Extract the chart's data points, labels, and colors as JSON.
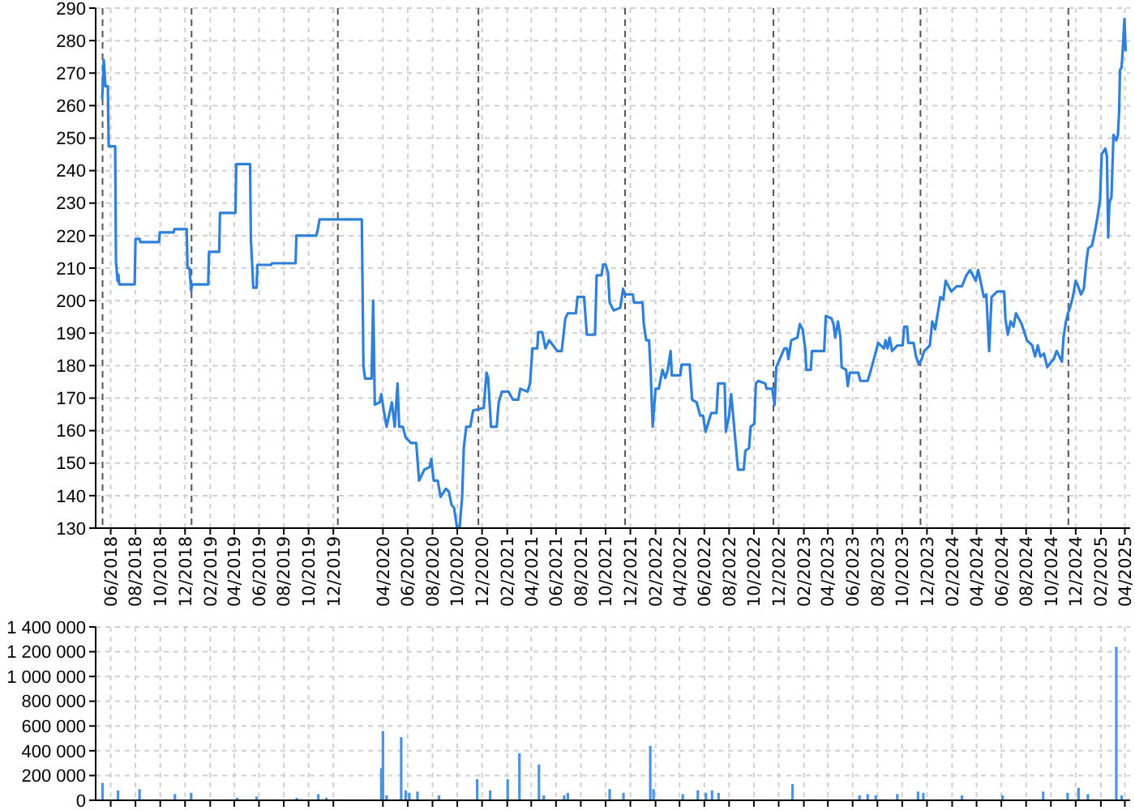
{
  "chart_data": [
    {
      "type": "line",
      "grid": true,
      "line_style": "solid",
      "xlim": [
        "2018-04-25",
        "2025-04-14"
      ],
      "ylim": [
        130,
        290
      ],
      "yticks": [
        130,
        140,
        150,
        160,
        170,
        180,
        190,
        200,
        210,
        220,
        230,
        240,
        250,
        260,
        270,
        280,
        290
      ],
      "xticks": [
        {
          "value": "2018-06-01",
          "label": "06/2018"
        },
        {
          "value": "2018-08-01",
          "label": "08/2018"
        },
        {
          "value": "2018-10-01",
          "label": "10/2018"
        },
        {
          "value": "2018-12-01",
          "label": "12/2018"
        },
        {
          "value": "2019-02-01",
          "label": "02/2019"
        },
        {
          "value": "2019-04-01",
          "label": "04/2019"
        },
        {
          "value": "2019-06-01",
          "label": "06/2019"
        },
        {
          "value": "2019-08-01",
          "label": "08/2019"
        },
        {
          "value": "2019-10-01",
          "label": "10/2019"
        },
        {
          "value": "2019-12-01",
          "label": "12/2019"
        },
        {
          "value": "2020-04-01",
          "label": "04/2020"
        },
        {
          "value": "2020-06-01",
          "label": "06/2020"
        },
        {
          "value": "2020-08-01",
          "label": "08/2020"
        },
        {
          "value": "2020-10-01",
          "label": "10/2020"
        },
        {
          "value": "2020-12-01",
          "label": "12/2020"
        },
        {
          "value": "2021-02-01",
          "label": "02/2021"
        },
        {
          "value": "2021-04-01",
          "label": "04/2021"
        },
        {
          "value": "2021-06-01",
          "label": "06/2021"
        },
        {
          "value": "2021-08-01",
          "label": "08/2021"
        },
        {
          "value": "2021-10-01",
          "label": "10/2021"
        },
        {
          "value": "2021-12-01",
          "label": "12/2021"
        },
        {
          "value": "2022-02-01",
          "label": "02/2022"
        },
        {
          "value": "2022-04-01",
          "label": "04/2022"
        },
        {
          "value": "2022-06-01",
          "label": "06/2022"
        },
        {
          "value": "2022-08-01",
          "label": "08/2022"
        },
        {
          "value": "2022-10-01",
          "label": "10/2022"
        },
        {
          "value": "2022-12-01",
          "label": "12/2022"
        },
        {
          "value": "2023-02-01",
          "label": "02/2023"
        },
        {
          "value": "2023-04-01",
          "label": "04/2023"
        },
        {
          "value": "2023-06-01",
          "label": "06/2023"
        },
        {
          "value": "2023-08-01",
          "label": "08/2023"
        },
        {
          "value": "2023-10-01",
          "label": "10/2023"
        },
        {
          "value": "2023-12-01",
          "label": "12/2023"
        },
        {
          "value": "2024-02-01",
          "label": "02/2024"
        },
        {
          "value": "2024-04-01",
          "label": "04/2024"
        },
        {
          "value": "2024-06-01",
          "label": "06/2024"
        },
        {
          "value": "2024-08-01",
          "label": "08/2024"
        },
        {
          "value": "2024-10-01",
          "label": "10/2024"
        },
        {
          "value": "2024-12-01",
          "label": "12/2024"
        },
        {
          "value": "2025-02-01",
          "label": "02/2025"
        },
        {
          "value": "2025-04-01",
          "label": "04/2025"
        }
      ],
      "ref_lines": [
        {
          "axis": "x",
          "value": "2018-05-12",
          "color": "#555555",
          "line_style": "dashed"
        },
        {
          "axis": "x",
          "value": "2018-12-17",
          "color": "#555555",
          "line_style": "dashed"
        },
        {
          "axis": "x",
          "value": "2019-12-12",
          "color": "#555555",
          "line_style": "dashed"
        },
        {
          "axis": "x",
          "value": "2020-11-22",
          "color": "#555555",
          "line_style": "dashed"
        },
        {
          "axis": "x",
          "value": "2021-11-18",
          "color": "#555555",
          "line_style": "dashed"
        },
        {
          "axis": "x",
          "value": "2022-11-18",
          "color": "#555555",
          "line_style": "dashed"
        },
        {
          "axis": "x",
          "value": "2023-11-15",
          "color": "#555555",
          "line_style": "dashed"
        },
        {
          "axis": "x",
          "value": "2024-11-13",
          "color": "#555555",
          "line_style": "dashed"
        }
      ],
      "series": [
        {
          "color": "#2f80d8",
          "x": [
            "2018-05-11",
            "2018-05-15",
            "2018-05-19",
            "2018-05-25",
            "2018-05-27",
            "2018-06-12",
            "2018-06-14",
            "2018-06-18",
            "2018-06-20",
            "2018-06-22",
            "2018-07-30",
            "2018-08-01",
            "2018-08-11",
            "2018-08-13",
            "2018-09-28",
            "2018-09-30",
            "2018-11-03",
            "2018-11-05",
            "2018-12-05",
            "2018-12-07",
            "2018-12-12",
            "2018-12-16",
            "2018-12-18",
            "2019-01-27",
            "2019-01-29",
            "2019-02-23",
            "2019-02-25",
            "2019-04-04",
            "2019-04-06",
            "2019-05-10",
            "2019-05-12",
            "2019-05-18",
            "2019-05-26",
            "2019-05-28",
            "2019-07-01",
            "2019-07-03",
            "2019-08-30",
            "2019-09-01",
            "2019-10-20",
            "2019-10-24",
            "2019-10-28",
            "2019-11-09",
            "2020-02-09",
            "2020-02-13",
            "2020-02-17",
            "2020-03-04",
            "2020-03-08",
            "2020-03-12",
            "2020-03-24",
            "2020-03-28",
            "2020-04-03",
            "2020-04-10",
            "2020-04-23",
            "2020-04-30",
            "2020-05-07",
            "2020-05-11",
            "2020-05-20",
            "2020-05-27",
            "2020-06-09",
            "2020-06-22",
            "2020-06-29",
            "2020-07-12",
            "2020-07-25",
            "2020-07-29",
            "2020-08-04",
            "2020-08-14",
            "2020-08-21",
            "2020-09-03",
            "2020-09-10",
            "2020-09-17",
            "2020-09-23",
            "2020-09-30",
            "2020-10-07",
            "2020-10-13",
            "2020-10-17",
            "2020-10-23",
            "2020-11-02",
            "2020-11-09",
            "2020-12-05",
            "2020-12-12",
            "2020-12-16",
            "2020-12-23",
            "2021-01-06",
            "2021-01-11",
            "2021-01-19",
            "2021-02-04",
            "2021-02-15",
            "2021-02-28",
            "2021-03-05",
            "2021-03-23",
            "2021-03-29",
            "2021-04-04",
            "2021-04-16",
            "2021-04-18",
            "2021-04-28",
            "2021-05-06",
            "2021-05-15",
            "2021-06-04",
            "2021-06-15",
            "2021-06-24",
            "2021-06-30",
            "2021-07-20",
            "2021-07-24",
            "2021-08-09",
            "2021-08-16",
            "2021-09-05",
            "2021-09-09",
            "2021-09-21",
            "2021-09-25",
            "2021-10-01",
            "2021-10-07",
            "2021-10-11",
            "2021-10-21",
            "2021-11-06",
            "2021-11-13",
            "2021-11-17",
            "2021-12-07",
            "2021-12-10",
            "2021-12-31",
            "2022-01-03",
            "2022-01-09",
            "2022-01-16",
            "2022-01-20",
            "2022-01-25",
            "2022-01-29",
            "2022-02-01",
            "2022-02-09",
            "2022-02-18",
            "2022-02-25",
            "2022-03-03",
            "2022-03-10",
            "2022-03-13",
            "2022-04-03",
            "2022-04-06",
            "2022-04-26",
            "2022-05-02",
            "2022-05-13",
            "2022-05-22",
            "2022-05-29",
            "2022-06-04",
            "2022-06-18",
            "2022-07-01",
            "2022-07-05",
            "2022-07-21",
            "2022-07-24",
            "2022-08-01",
            "2022-08-06",
            "2022-08-11",
            "2022-08-17",
            "2022-08-23",
            "2022-09-06",
            "2022-09-10",
            "2022-09-19",
            "2022-09-23",
            "2022-10-02",
            "2022-10-06",
            "2022-10-12",
            "2022-10-29",
            "2022-11-01",
            "2022-11-15",
            "2022-11-21",
            "2022-11-25",
            "2022-12-01",
            "2022-12-15",
            "2022-12-21",
            "2022-12-25",
            "2023-01-01",
            "2023-01-16",
            "2023-01-22",
            "2023-01-29",
            "2023-02-05",
            "2023-02-07",
            "2023-02-18",
            "2023-02-21",
            "2023-03-23",
            "2023-03-27",
            "2023-04-10",
            "2023-04-15",
            "2023-04-19",
            "2023-04-26",
            "2023-05-02",
            "2023-05-05",
            "2023-05-16",
            "2023-05-20",
            "2023-05-25",
            "2023-06-15",
            "2023-06-20",
            "2023-07-08",
            "2023-07-14",
            "2023-07-25",
            "2023-08-03",
            "2023-08-17",
            "2023-08-21",
            "2023-08-26",
            "2023-08-31",
            "2023-09-06",
            "2023-09-19",
            "2023-10-02",
            "2023-10-06",
            "2023-10-13",
            "2023-10-16",
            "2023-10-29",
            "2023-11-04",
            "2023-11-11",
            "2023-11-18",
            "2023-11-24",
            "2023-12-08",
            "2023-12-14",
            "2023-12-21",
            "2024-01-03",
            "2024-01-10",
            "2024-01-16",
            "2024-01-30",
            "2024-02-12",
            "2024-02-25",
            "2024-03-07",
            "2024-03-16",
            "2024-03-23",
            "2024-03-30",
            "2024-04-05",
            "2024-04-12",
            "2024-04-19",
            "2024-04-25",
            "2024-05-02",
            "2024-05-08",
            "2024-05-22",
            "2024-06-08",
            "2024-06-11",
            "2024-06-17",
            "2024-06-24",
            "2024-07-01",
            "2024-07-07",
            "2024-07-21",
            "2024-08-03",
            "2024-08-16",
            "2024-08-23",
            "2024-08-30",
            "2024-09-05",
            "2024-09-14",
            "2024-09-22",
            "2024-10-02",
            "2024-10-08",
            "2024-10-15",
            "2024-10-22",
            "2024-10-28",
            "2024-11-01",
            "2024-11-07",
            "2024-11-12",
            "2024-11-17",
            "2024-11-24",
            "2024-12-01",
            "2024-12-07",
            "2024-12-14",
            "2024-12-21",
            "2024-12-28",
            "2025-01-01",
            "2025-01-10",
            "2025-01-17",
            "2025-01-23",
            "2025-01-30",
            "2025-02-03",
            "2025-02-12",
            "2025-02-16",
            "2025-02-19",
            "2025-02-22",
            "2025-02-27",
            "2025-03-04",
            "2025-03-11",
            "2025-03-15",
            "2025-03-18",
            "2025-03-20",
            "2025-03-24",
            "2025-03-27",
            "2025-03-31",
            "2025-04-03"
          ],
          "values": [
            262,
            274,
            266,
            266,
            247.5,
            247.5,
            212,
            206,
            208,
            205,
            205,
            219,
            219,
            218,
            218,
            221,
            221,
            222,
            222,
            210,
            210,
            203,
            205,
            205,
            215,
            215,
            227,
            227,
            242,
            242,
            219,
            204,
            204,
            211,
            211,
            211.5,
            211.5,
            220,
            220,
            222,
            225,
            225,
            225,
            180,
            176,
            176,
            200,
            168,
            168.7,
            171.2,
            166.2,
            161.2,
            168.7,
            161.2,
            174.5,
            161.2,
            161.2,
            157.9,
            156.2,
            156.2,
            144.6,
            148,
            148.8,
            151.3,
            144.6,
            144.6,
            139.6,
            142.1,
            141.3,
            137.1,
            136.3,
            130.5,
            130.5,
            139.6,
            154.6,
            161.2,
            161.2,
            166.2,
            167,
            177.8,
            176.2,
            161.2,
            161.2,
            168.7,
            172,
            172,
            169.5,
            169.5,
            172.9,
            172,
            174.5,
            185.3,
            185.3,
            190.3,
            190.3,
            185.3,
            187.8,
            184.5,
            184.5,
            194.5,
            196.1,
            196.1,
            201.1,
            201.1,
            189.5,
            189.5,
            207.8,
            207.8,
            211.1,
            211.1,
            208.6,
            199.4,
            197,
            197.8,
            203.6,
            201.9,
            201.9,
            199.4,
            199.4,
            192.8,
            187.8,
            187.8,
            177.8,
            161.2,
            167.9,
            172.9,
            172.9,
            178.7,
            176.2,
            178.7,
            184.5,
            177,
            177,
            180.3,
            180.3,
            169.5,
            168.7,
            164.6,
            164.6,
            159.6,
            165.4,
            165.4,
            174.5,
            174.5,
            159.6,
            164.6,
            171.2,
            164.6,
            156.2,
            148,
            148,
            153.8,
            154.6,
            161.2,
            162.1,
            174.5,
            175.3,
            174.5,
            172.9,
            172.9,
            167.9,
            179.5,
            181.2,
            185.3,
            185.3,
            182,
            187.8,
            188.6,
            192.8,
            191.1,
            184.5,
            178.7,
            178.7,
            184.5,
            184.5,
            195.3,
            194.5,
            192.8,
            188.6,
            193.6,
            188.6,
            179.5,
            178.7,
            173.7,
            177.8,
            177.8,
            175.3,
            175.3,
            177.8,
            182.8,
            187,
            185.3,
            187.8,
            185.3,
            188.6,
            184.5,
            186.2,
            186.2,
            192,
            192,
            187,
            187,
            182.8,
            180.3,
            182,
            184.5,
            186.2,
            193.6,
            191.1,
            201.1,
            200.3,
            206.1,
            202.8,
            204.4,
            204.4,
            207.8,
            209.4,
            207.8,
            206.1,
            209.4,
            205.3,
            201.1,
            201.9,
            184.5,
            201.1,
            202.8,
            202.8,
            194.5,
            189.5,
            193.6,
            192,
            196.1,
            192.8,
            187.8,
            186.2,
            182.8,
            186.2,
            182.8,
            183.7,
            179.5,
            181.2,
            182,
            184.5,
            182.8,
            181.2,
            188.6,
            193.6,
            196.1,
            197.8,
            201.1,
            206.1,
            204.4,
            201.9,
            203.6,
            212.7,
            216.1,
            216.9,
            221,
            225.2,
            231,
            245.1,
            246.8,
            244.3,
            219.4,
            230.2,
            231.8,
            251,
            249.3,
            251,
            258.4,
            270.9,
            271.7,
            277.5,
            286.7,
            276.7
          ]
        }
      ]
    },
    {
      "type": "bar",
      "grid": true,
      "tick_labels": "y",
      "xlim": [
        "2018-04-25",
        "2025-04-14"
      ],
      "ylim": [
        0,
        1400000
      ],
      "yticks": [
        0,
        {
          "value": 200000,
          "label": "200 000"
        },
        {
          "value": 400000,
          "label": "400 000"
        },
        {
          "value": 600000,
          "label": "600 000"
        },
        {
          "value": 800000,
          "label": "800 000"
        },
        {
          "value": 1000000,
          "label": "1 000 000"
        },
        {
          "value": 1200000,
          "label": "1 200 000"
        },
        {
          "value": 1400000,
          "label": "1 400 000"
        }
      ],
      "xticks": [
        {
          "value": "2018-06-01",
          "label": null
        },
        {
          "value": "2018-08-01",
          "label": null
        },
        {
          "value": "2018-10-01",
          "label": null
        },
        {
          "value": "2018-12-01",
          "label": null
        },
        {
          "value": "2019-02-01",
          "label": null
        },
        {
          "value": "2019-04-01",
          "label": null
        },
        {
          "value": "2019-06-01",
          "label": null
        },
        {
          "value": "2019-08-01",
          "label": null
        },
        {
          "value": "2019-10-01",
          "label": null
        },
        {
          "value": "2019-12-01",
          "label": null
        },
        {
          "value": "2020-04-01",
          "label": null
        },
        {
          "value": "2020-06-01",
          "label": null
        },
        {
          "value": "2020-08-01",
          "label": null
        },
        {
          "value": "2020-10-01",
          "label": null
        },
        {
          "value": "2020-12-01",
          "label": null
        },
        {
          "value": "2021-02-01",
          "label": null
        },
        {
          "value": "2021-04-01",
          "label": null
        },
        {
          "value": "2021-06-01",
          "label": null
        },
        {
          "value": "2021-08-01",
          "label": null
        },
        {
          "value": "2021-10-01",
          "label": null
        },
        {
          "value": "2021-12-01",
          "label": null
        },
        {
          "value": "2022-02-01",
          "label": null
        },
        {
          "value": "2022-04-01",
          "label": null
        },
        {
          "value": "2022-06-01",
          "label": null
        },
        {
          "value": "2022-08-01",
          "label": null
        },
        {
          "value": "2022-10-01",
          "label": null
        },
        {
          "value": "2022-12-01",
          "label": null
        },
        {
          "value": "2023-02-01",
          "label": null
        },
        {
          "value": "2023-04-01",
          "label": null
        },
        {
          "value": "2023-06-01",
          "label": null
        },
        {
          "value": "2023-08-01",
          "label": null
        },
        {
          "value": "2023-10-01",
          "label": null
        },
        {
          "value": "2023-12-01",
          "label": null
        },
        {
          "value": "2024-02-01",
          "label": null
        },
        {
          "value": "2024-04-01",
          "label": null
        },
        {
          "value": "2024-06-01",
          "label": null
        },
        {
          "value": "2024-08-01",
          "label": null
        },
        {
          "value": "2024-10-01",
          "label": null
        },
        {
          "value": "2024-12-01",
          "label": null
        },
        {
          "value": "2025-02-01",
          "label": null
        },
        {
          "value": "2025-04-01",
          "label": null
        }
      ],
      "series": [
        {
          "color": "#4a94e0",
          "x": [
            "2018-05-12",
            "2018-06-19",
            "2018-08-11",
            "2018-11-06",
            "2018-12-16",
            "2019-04-08",
            "2019-05-26",
            "2019-09-02",
            "2019-10-25",
            "2019-11-14",
            "2020-03-28",
            "2020-04-01",
            "2020-04-10",
            "2020-05-16",
            "2020-05-27",
            "2020-06-05",
            "2020-06-25",
            "2020-08-17",
            "2020-11-19",
            "2020-12-21",
            "2021-02-02",
            "2021-03-03",
            "2021-04-20",
            "2021-05-02",
            "2021-06-21",
            "2021-06-30",
            "2021-10-11",
            "2021-11-14",
            "2022-01-19",
            "2022-01-27",
            "2022-04-09",
            "2022-05-16",
            "2022-06-05",
            "2022-06-20",
            "2022-07-06",
            "2023-01-04",
            "2023-06-18",
            "2023-07-08",
            "2023-07-28",
            "2023-09-19",
            "2023-11-09",
            "2023-11-22",
            "2024-02-25",
            "2024-06-04",
            "2024-09-12",
            "2024-11-11",
            "2024-12-08",
            "2024-12-31",
            "2025-03-11",
            "2025-03-24"
          ],
          "values": [
            140000,
            80000,
            90000,
            50000,
            60000,
            20000,
            30000,
            20000,
            50000,
            20000,
            260000,
            560000,
            40000,
            510000,
            80000,
            60000,
            70000,
            40000,
            170000,
            80000,
            170000,
            380000,
            290000,
            40000,
            40000,
            60000,
            90000,
            60000,
            440000,
            90000,
            50000,
            80000,
            60000,
            80000,
            60000,
            130000,
            40000,
            50000,
            40000,
            50000,
            70000,
            60000,
            40000,
            40000,
            70000,
            60000,
            100000,
            50000,
            1240000,
            40000
          ]
        }
      ]
    }
  ]
}
